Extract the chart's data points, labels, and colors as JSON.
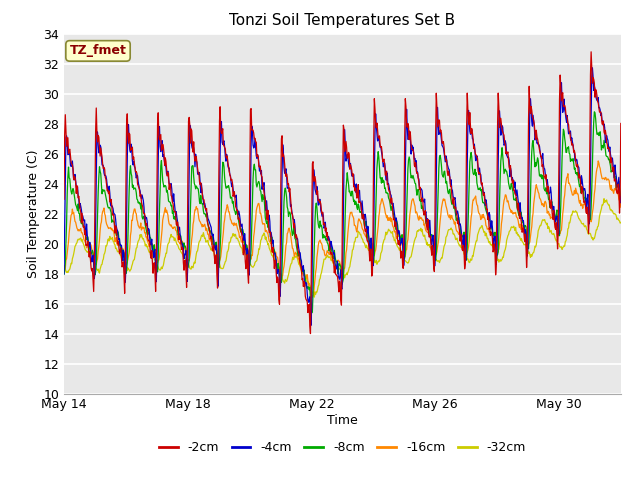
{
  "title": "Tonzi Soil Temperatures Set B",
  "xlabel": "Time",
  "ylabel": "Soil Temperature (C)",
  "ylim": [
    10,
    34
  ],
  "yticks": [
    10,
    12,
    14,
    16,
    18,
    20,
    22,
    24,
    26,
    28,
    30,
    32,
    34
  ],
  "line_colors": {
    "-2cm": "#cc0000",
    "-4cm": "#0000cc",
    "-8cm": "#00aa00",
    "-16cm": "#ff8800",
    "-32cm": "#cccc00"
  },
  "bg_color": "#ffffff",
  "plot_bg_color": "#e8e8e8",
  "grid_color": "#ffffff",
  "tick_positions": [
    0,
    4,
    8,
    12,
    16
  ],
  "tick_labels": [
    "May 14",
    "May 18",
    "May 22",
    "May 26",
    "May 30"
  ],
  "n_days": 18,
  "pts_per_day": 48
}
